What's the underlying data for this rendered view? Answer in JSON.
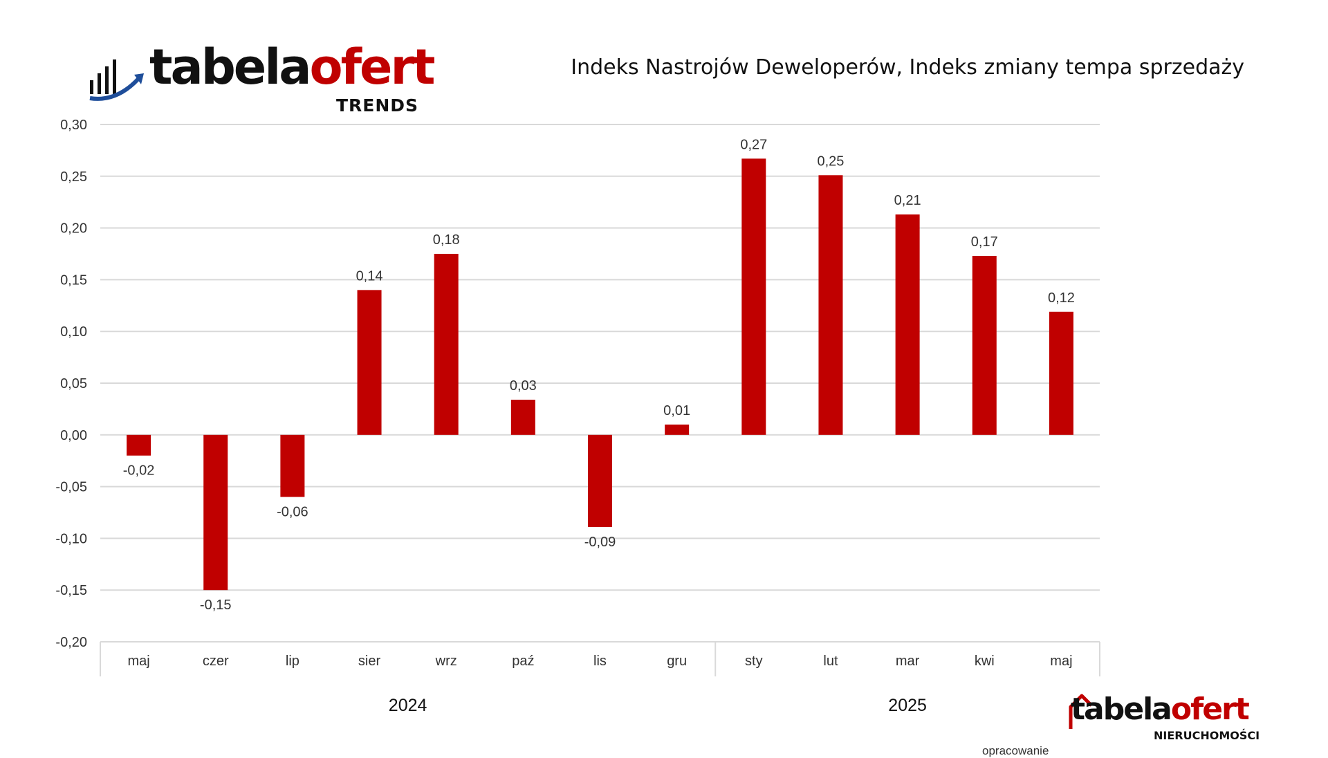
{
  "header": {
    "logo_word_dark": "tabela",
    "logo_word_red": "ofert",
    "logo_sub": "TRENDS",
    "title": "Indeks Nastrojów Deweloperów, Indeks zmiany tempa sprzedaży"
  },
  "footer": {
    "credit": "opracowanie",
    "logo_word_dark": "tabela",
    "logo_word_red": "ofert",
    "logo_sub": "NIERUCHOMOŚCI"
  },
  "colors": {
    "bar": "#c00000",
    "grid": "#d9d9d9",
    "brand_red": "#c00000",
    "brand_blue": "#1f4e9a"
  },
  "chart_data": {
    "type": "bar",
    "categories": [
      "maj",
      "czer",
      "lip",
      "sier",
      "wrz",
      "paź",
      "lis",
      "gru",
      "sty",
      "lut",
      "mar",
      "kwi",
      "maj"
    ],
    "values": [
      -0.02,
      -0.15,
      -0.06,
      0.14,
      0.175,
      0.034,
      -0.089,
      0.01,
      0.267,
      0.251,
      0.213,
      0.173,
      0.119
    ],
    "data_labels": [
      "-0,02",
      "-0,15",
      "-0,06",
      "0,14",
      "0,18",
      "0,03",
      "-0,09",
      "0,01",
      "0,27",
      "0,25",
      "0,21",
      "0,17",
      "0,12"
    ],
    "groups": [
      {
        "label": "2024",
        "start": 0,
        "end": 7
      },
      {
        "label": "2025",
        "start": 8,
        "end": 12
      }
    ],
    "ylim": [
      -0.2,
      0.3
    ],
    "yticks": [
      0.3,
      0.25,
      0.2,
      0.15,
      0.1,
      0.05,
      0.0,
      -0.05,
      -0.1,
      -0.15,
      -0.2
    ],
    "ytick_labels": [
      "0,30",
      "0,25",
      "0,20",
      "0,15",
      "0,10",
      "0,05",
      "0,00",
      "-0,05",
      "-0,10",
      "-0,15",
      "-0,20"
    ],
    "grid": true,
    "legend": "none"
  }
}
